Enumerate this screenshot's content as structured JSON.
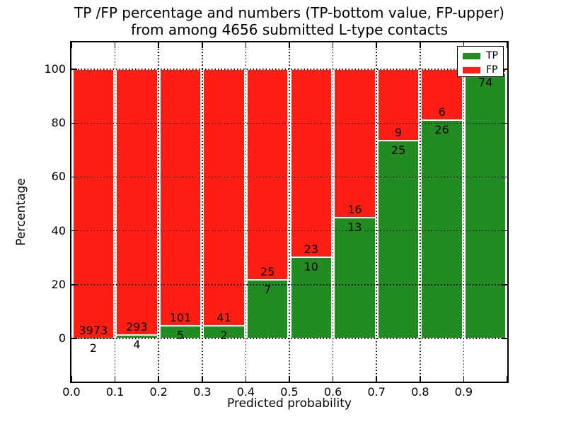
{
  "figure": {
    "title_line1": "TP /FP percentage and numbers (TP-bottom value, FP-upper)",
    "title_line2": "from among 4656 submitted L-type contacts",
    "xlabel": "Predicted probability",
    "ylabel": "Percentage"
  },
  "legend": {
    "position": "upper-right",
    "items": [
      {
        "label": "TP",
        "color": "#228b22"
      },
      {
        "label": "FP",
        "color": "#fc1d13"
      }
    ]
  },
  "chart_data": {
    "type": "bar",
    "stacked": true,
    "title": "TP /FP percentage and numbers (TP-bottom value, FP-upper)\nfrom among 4656 submitted L-type contacts",
    "xlabel": "Predicted probability",
    "ylabel": "Percentage",
    "total_contacts": 4656,
    "x_tick_labels": [
      "0.0",
      "0.1",
      "0.2",
      "0.3",
      "0.4",
      "0.5",
      "0.6",
      "0.7",
      "0.8",
      "0.9"
    ],
    "y_tick_values": [
      0,
      20,
      40,
      60,
      80,
      100
    ],
    "xlim": [
      0.0,
      1.0
    ],
    "ylim_display": [
      -16,
      110
    ],
    "grid": {
      "style": "dotted",
      "color": "#000000",
      "vertical_at": [
        0.1,
        0.2,
        0.3,
        0.4,
        0.5,
        0.6,
        0.7,
        0.8,
        0.9
      ],
      "horizontal_at": [
        0,
        20,
        40,
        60,
        80,
        100
      ]
    },
    "colors": {
      "tp": "#228b22",
      "fp": "#fc1d13",
      "bar_edge": "#ffffff"
    },
    "legend_entries": [
      "TP",
      "FP"
    ],
    "bins": [
      {
        "x_range": [
          0.0,
          0.1
        ],
        "tp_count": 2,
        "fp_count": 3973,
        "tp_percent": 0.05,
        "tp_label": "2",
        "fp_label": "3973"
      },
      {
        "x_range": [
          0.1,
          0.2
        ],
        "tp_count": 4,
        "fp_count": 293,
        "tp_percent": 1.35,
        "tp_label": "4",
        "fp_label": "293"
      },
      {
        "x_range": [
          0.2,
          0.3
        ],
        "tp_count": 5,
        "fp_count": 101,
        "tp_percent": 4.72,
        "tp_label": "5",
        "fp_label": "101"
      },
      {
        "x_range": [
          0.3,
          0.4
        ],
        "tp_count": 2,
        "fp_count": 41,
        "tp_percent": 4.65,
        "tp_label": "2",
        "fp_label": "41"
      },
      {
        "x_range": [
          0.4,
          0.5
        ],
        "tp_count": 7,
        "fp_count": 25,
        "tp_percent": 21.9,
        "tp_label": "7",
        "fp_label": "25"
      },
      {
        "x_range": [
          0.5,
          0.6
        ],
        "tp_count": 10,
        "fp_count": 23,
        "tp_percent": 30.3,
        "tp_label": "10",
        "fp_label": "23"
      },
      {
        "x_range": [
          0.6,
          0.7
        ],
        "tp_count": 13,
        "fp_count": 16,
        "tp_percent": 44.8,
        "tp_label": "13",
        "fp_label": "16"
      },
      {
        "x_range": [
          0.7,
          0.8
        ],
        "tp_count": 25,
        "fp_count": 9,
        "tp_percent": 73.5,
        "tp_label": "25",
        "fp_label": "9"
      },
      {
        "x_range": [
          0.8,
          0.9
        ],
        "tp_count": 26,
        "fp_count": 6,
        "tp_percent": 81.25,
        "tp_label": "26",
        "fp_label": "6"
      },
      {
        "x_range": [
          0.9,
          1.0
        ],
        "tp_count": 74,
        "tp_percent": 98.7,
        "tp_label": "74",
        "fp_label": "",
        "fp_label_hidden_behind_legend": true
      }
    ]
  }
}
